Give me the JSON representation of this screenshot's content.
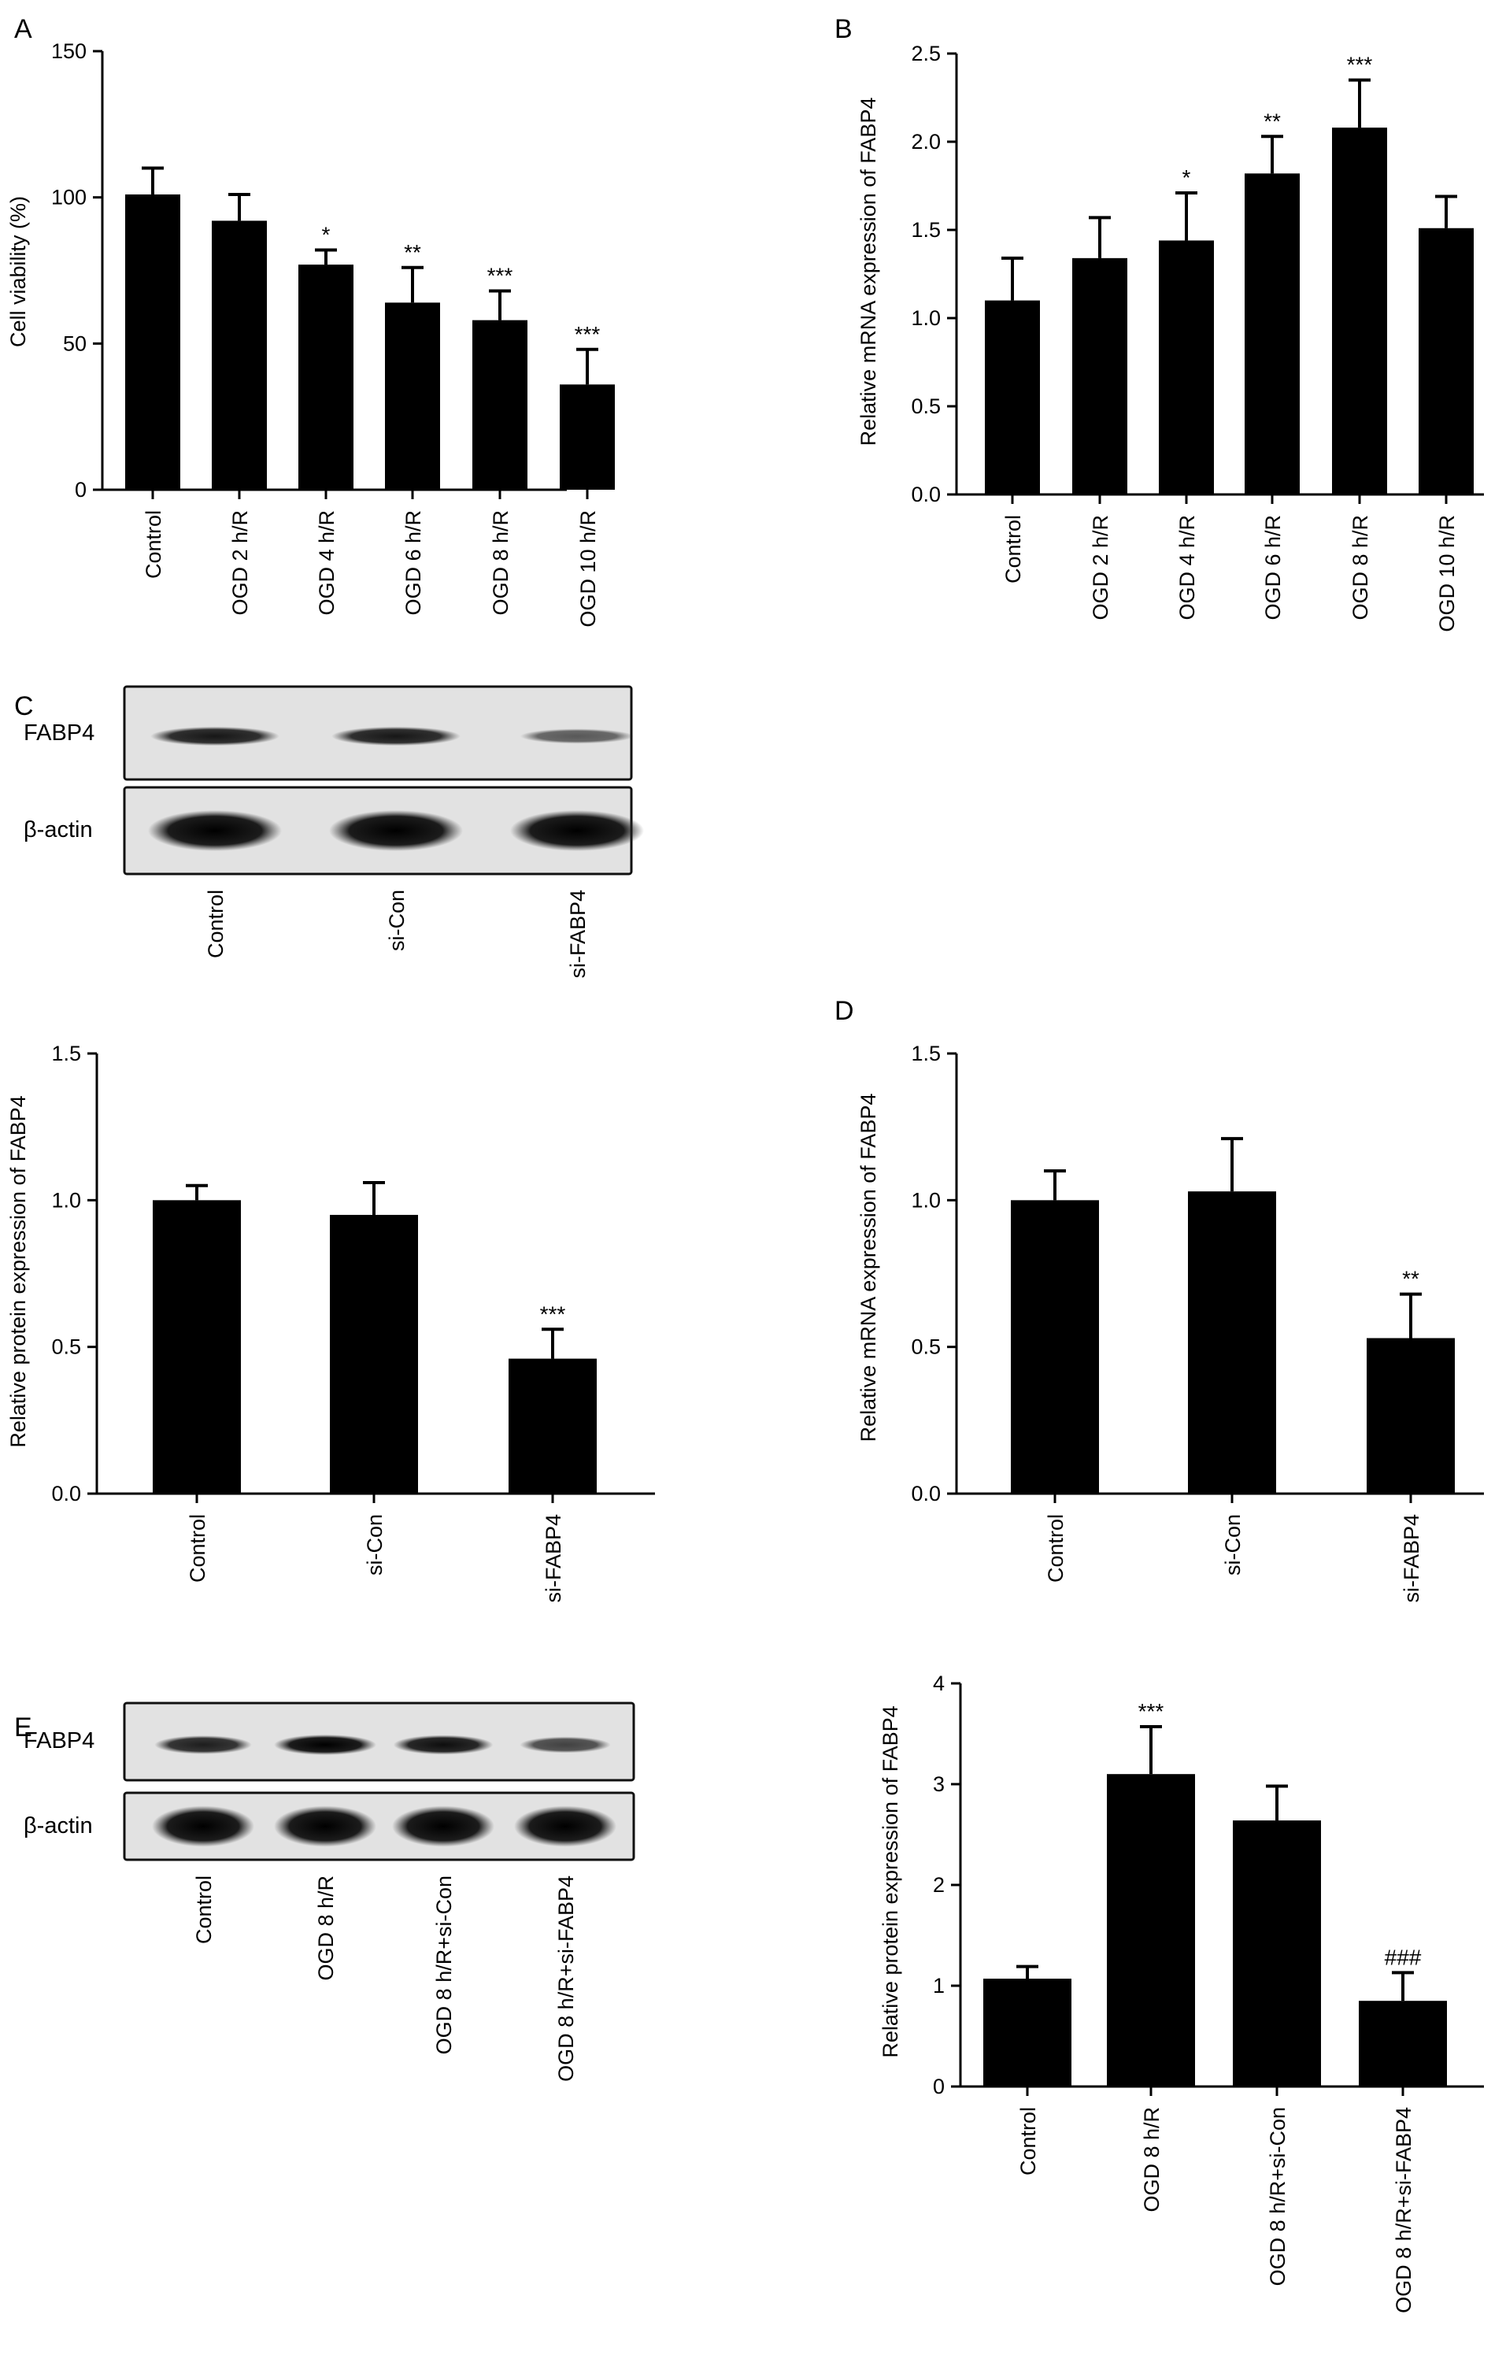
{
  "panels": [
    {
      "id": "A",
      "letter": "A"
    },
    {
      "id": "B",
      "letter": "B"
    },
    {
      "id": "C",
      "letter": "C"
    },
    {
      "id": "D",
      "letter": "D"
    },
    {
      "id": "E",
      "letter": "E"
    }
  ],
  "blots": [
    {
      "id": "blot-C",
      "rows": [
        "FABP4",
        "β-actin"
      ],
      "lanes": [
        "Control",
        "si-Con",
        "si-FABP4"
      ],
      "fabp4_intensity": [
        0.85,
        0.85,
        0.4
      ],
      "actin_intensity": [
        1,
        1,
        1
      ]
    },
    {
      "id": "blot-E",
      "rows": [
        "FABP4",
        "β-actin"
      ],
      "lanes": [
        "Control",
        "OGD 8 h/R",
        "OGD 8 h/R+si-Con",
        "OGD 8 h/R+si-FABP4"
      ],
      "fabp4_intensity": [
        0.8,
        1,
        0.9,
        0.55
      ],
      "actin_intensity": [
        1,
        1,
        1,
        1
      ]
    }
  ],
  "chart_data": [
    {
      "id": "A",
      "type": "bar",
      "categories": [
        "Control",
        "OGD 2 h/R",
        "OGD 4 h/R",
        "OGD 6 h/R",
        "OGD 8 h/R",
        "OGD 10 h/R"
      ],
      "values": [
        101,
        92,
        77,
        64,
        58,
        36
      ],
      "errors": [
        9,
        9,
        5,
        12,
        10,
        12
      ],
      "significance": [
        "",
        "",
        "*",
        "**",
        "***",
        "***"
      ],
      "ylabel": "Cell viability (%)",
      "xlabel": "",
      "ylim": [
        0,
        150
      ],
      "yticks": [
        0,
        50,
        100,
        150
      ],
      "ytick_labels": [
        "0",
        "50",
        "100",
        "150"
      ]
    },
    {
      "id": "B",
      "type": "bar",
      "categories": [
        "Control",
        "OGD 2 h/R",
        "OGD 4 h/R",
        "OGD 6 h/R",
        "OGD 8 h/R",
        "OGD 10 h/R"
      ],
      "values": [
        1.1,
        1.34,
        1.44,
        1.82,
        2.08,
        1.51
      ],
      "errors": [
        0.24,
        0.23,
        0.27,
        0.21,
        0.27,
        0.18
      ],
      "significance": [
        "",
        "",
        "*",
        "**",
        "***",
        ""
      ],
      "ylabel": "Relative mRNA expression of FABP4",
      "xlabel": "",
      "ylim": [
        0,
        2.5
      ],
      "yticks": [
        0,
        0.5,
        1.0,
        1.5,
        2.0,
        2.5
      ],
      "ytick_labels": [
        "0.0",
        "0.5",
        "1.0",
        "1.5",
        "2.0",
        "2.5"
      ]
    },
    {
      "id": "C-chart",
      "type": "bar",
      "categories": [
        "Control",
        "si-Con",
        "si-FABP4"
      ],
      "values": [
        1.0,
        0.95,
        0.46
      ],
      "errors": [
        0.05,
        0.11,
        0.1
      ],
      "significance": [
        "",
        "",
        "***"
      ],
      "ylabel": "Relative protein expression of FABP4",
      "xlabel": "",
      "ylim": [
        0,
        1.5
      ],
      "yticks": [
        0,
        0.5,
        1.0,
        1.5
      ],
      "ytick_labels": [
        "0.0",
        "0.5",
        "1.0",
        "1.5"
      ]
    },
    {
      "id": "D",
      "type": "bar",
      "categories": [
        "Control",
        "si-Con",
        "si-FABP4"
      ],
      "values": [
        1.0,
        1.03,
        0.53
      ],
      "errors": [
        0.1,
        0.18,
        0.15
      ],
      "significance": [
        "",
        "",
        "**"
      ],
      "ylabel": "Relative mRNA expression of FABP4",
      "xlabel": "",
      "ylim": [
        0,
        1.5
      ],
      "yticks": [
        0,
        0.5,
        1.0,
        1.5
      ],
      "ytick_labels": [
        "0.0",
        "0.5",
        "1.0",
        "1.5"
      ]
    },
    {
      "id": "E-chart",
      "type": "bar",
      "categories": [
        "Control",
        "OGD 8 h/R",
        "OGD 8 h/R+si-Con",
        "OGD 8 h/R+si-FABP4"
      ],
      "values": [
        1.07,
        3.1,
        2.64,
        0.85
      ],
      "errors": [
        0.12,
        0.47,
        0.34,
        0.28
      ],
      "significance": [
        "",
        "***",
        "",
        "###"
      ],
      "ylabel": "Relative protein expression of FABP4",
      "xlabel": "",
      "ylim": [
        0,
        4
      ],
      "yticks": [
        0,
        1,
        2,
        3,
        4
      ],
      "ytick_labels": [
        "0",
        "1",
        "2",
        "3",
        "4"
      ]
    }
  ]
}
